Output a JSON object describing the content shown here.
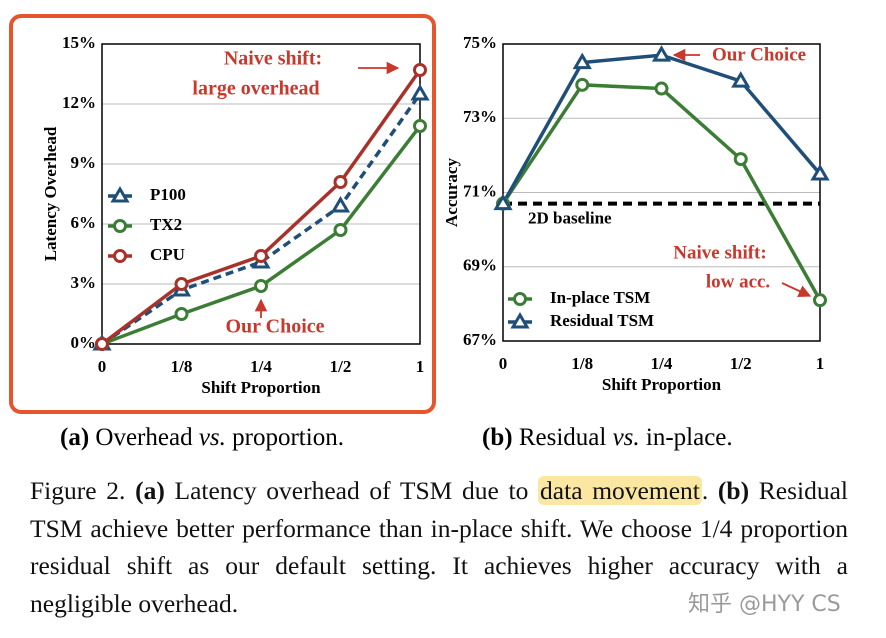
{
  "chart_data": [
    {
      "type": "line",
      "ylabel": "Latency Overhead",
      "xlabel": "Shift Proportion",
      "categories": [
        "0",
        "1/8",
        "1/4",
        "1/2",
        "1"
      ],
      "ylim": [
        0,
        15
      ],
      "yticks": [
        {
          "value": 0,
          "label": "0%"
        },
        {
          "value": 3,
          "label": "3%"
        },
        {
          "value": 6,
          "label": "6%"
        },
        {
          "value": 9,
          "label": "9%"
        },
        {
          "value": 12,
          "label": "12%"
        },
        {
          "value": 15,
          "label": "15%"
        }
      ],
      "grid": true,
      "series": [
        {
          "name": "P100",
          "color": "#1f4e79",
          "marker": "triangle",
          "line_style": "dashed",
          "values": [
            0,
            2.7,
            4.1,
            6.9,
            12.5
          ]
        },
        {
          "name": "TX2",
          "color": "#3b7d34",
          "marker": "circle",
          "line_style": "solid",
          "values": [
            0,
            1.5,
            2.9,
            5.7,
            10.9
          ]
        },
        {
          "name": "CPU",
          "color": "#a8322a",
          "marker": "circle",
          "line_style": "solid",
          "values": [
            0,
            3.0,
            4.4,
            8.1,
            13.7
          ]
        }
      ],
      "annotations": [
        "Naive shift:",
        "large overhead",
        "Our Choice"
      ]
    },
    {
      "type": "line",
      "ylabel": "Accuracy",
      "xlabel": "Shift Proportion",
      "categories": [
        "0",
        "1/8",
        "1/4",
        "1/2",
        "1"
      ],
      "ylim": [
        67,
        75
      ],
      "yticks": [
        {
          "value": 67,
          "label": "67%"
        },
        {
          "value": 69,
          "label": "69%"
        },
        {
          "value": 71,
          "label": "71%"
        },
        {
          "value": 73,
          "label": "73%"
        },
        {
          "value": 75,
          "label": "75%"
        }
      ],
      "grid": true,
      "baseline": 70.7,
      "baseline_label": "2D baseline",
      "series": [
        {
          "name": "In-place TSM",
          "color": "#3b7d34",
          "marker": "circle",
          "line_style": "solid",
          "values": [
            70.7,
            73.9,
            73.8,
            71.9,
            68.1
          ]
        },
        {
          "name": "Residual TSM",
          "color": "#1f4e79",
          "marker": "triangle",
          "line_style": "solid",
          "values": [
            70.7,
            74.5,
            74.7,
            74.0,
            71.5
          ]
        }
      ],
      "annotations": [
        "Our Choice",
        "Naive shift:",
        "low acc."
      ]
    }
  ],
  "subcaptions": [
    [
      "(a)",
      "Overhead",
      "vs.",
      "proportion."
    ],
    [
      "(b)",
      "Residual",
      "vs.",
      "in-place."
    ]
  ],
  "caption": [
    "Figure 2.",
    "(a)",
    "Latency overhead of TSM due to",
    "data movement",
    ".",
    "(b)",
    "Residual TSM achieve better performance than in-place shift. We choose 1/4 proportion residual shift as our default setting. It achieves higher accuracy with a negligible overhead."
  ],
  "watermark": "知乎 @HYY CS"
}
